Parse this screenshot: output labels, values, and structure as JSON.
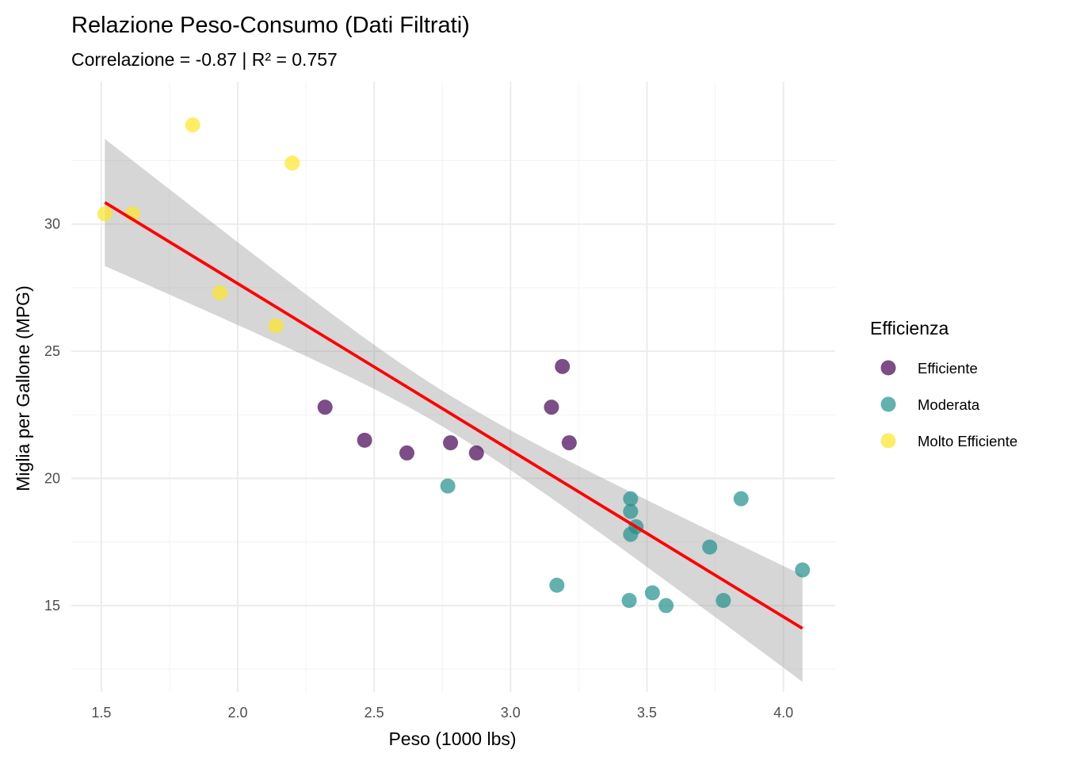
{
  "chart_data": {
    "type": "scatter",
    "title": "Relazione Peso-Consumo (Dati Filtrati)",
    "subtitle": "Correlazione = -0.87 | R² = 0.757",
    "xlabel": "Peso (1000 lbs)",
    "ylabel": "Miglia per Gallone (MPG)",
    "xlim": [
      1.39,
      4.19
    ],
    "ylim": [
      11.6,
      35.6
    ],
    "x_ticks": [
      1.5,
      2.0,
      2.5,
      3.0,
      3.5,
      4.0
    ],
    "x_tick_labels": [
      "1.5",
      "2.0",
      "2.5",
      "3.0",
      "3.5",
      "4.0"
    ],
    "y_ticks": [
      15,
      20,
      25,
      30
    ],
    "y_tick_labels": [
      "15",
      "20",
      "25",
      "30"
    ],
    "grid": true,
    "legend": {
      "title": "Efficienza",
      "position": "right"
    },
    "series": [
      {
        "name": "Efficiente",
        "color": "#440154",
        "points": [
          {
            "x": 2.32,
            "y": 22.8
          },
          {
            "x": 2.465,
            "y": 21.5
          },
          {
            "x": 2.62,
            "y": 21.0
          },
          {
            "x": 2.78,
            "y": 21.4
          },
          {
            "x": 2.875,
            "y": 21.0
          },
          {
            "x": 3.15,
            "y": 22.8
          },
          {
            "x": 3.19,
            "y": 24.4
          },
          {
            "x": 3.215,
            "y": 21.4
          }
        ]
      },
      {
        "name": "Moderata",
        "color": "#21908C",
        "points": [
          {
            "x": 2.77,
            "y": 19.7
          },
          {
            "x": 3.17,
            "y": 15.8
          },
          {
            "x": 3.435,
            "y": 15.2
          },
          {
            "x": 3.44,
            "y": 19.2
          },
          {
            "x": 3.44,
            "y": 18.7
          },
          {
            "x": 3.44,
            "y": 17.8
          },
          {
            "x": 3.46,
            "y": 18.1
          },
          {
            "x": 3.52,
            "y": 15.5
          },
          {
            "x": 3.57,
            "y": 15.0
          },
          {
            "x": 3.73,
            "y": 17.3
          },
          {
            "x": 3.78,
            "y": 15.2
          },
          {
            "x": 3.845,
            "y": 19.2
          },
          {
            "x": 4.07,
            "y": 16.4
          }
        ]
      },
      {
        "name": "Molto Efficiente",
        "color": "#FDE725",
        "points": [
          {
            "x": 1.513,
            "y": 30.4
          },
          {
            "x": 1.615,
            "y": 30.4
          },
          {
            "x": 1.835,
            "y": 33.9
          },
          {
            "x": 1.935,
            "y": 27.3
          },
          {
            "x": 2.14,
            "y": 26.0
          },
          {
            "x": 2.2,
            "y": 32.4
          }
        ]
      }
    ],
    "regression": {
      "color": "#FF0000",
      "ci_color": "#999999",
      "x_range": [
        1.513,
        4.07
      ],
      "y_at_x_start": 30.85,
      "y_at_x_end": 14.1,
      "lower_at_x_start": 28.4,
      "upper_at_x_start": 33.4,
      "lower_at_x_end": 12.0,
      "upper_at_x_end": 16.2,
      "lower_at_x_mid": 22.1,
      "upper_at_x_mid": 23.5,
      "x_mid": 2.77
    }
  }
}
